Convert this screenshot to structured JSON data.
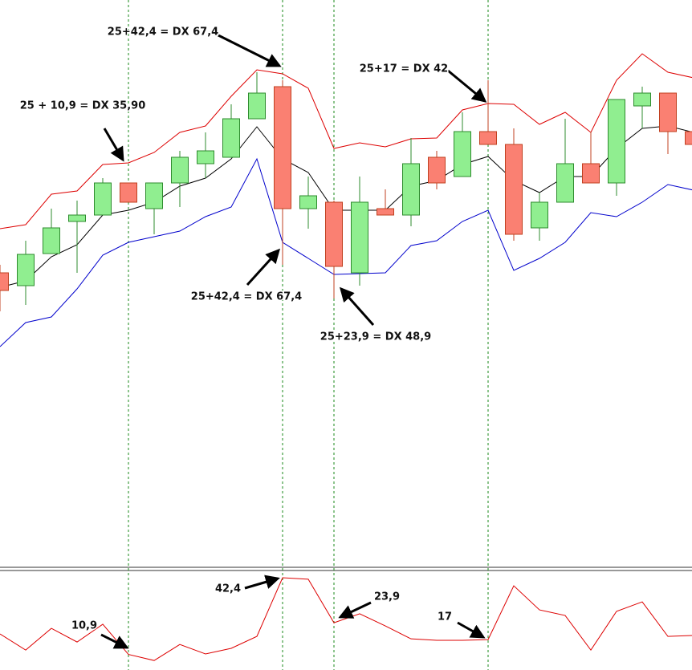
{
  "chart_data": [
    {
      "type": "candlestick",
      "open": [
        360,
        344,
        384,
        424,
        432,
        472,
        440,
        472,
        496,
        504,
        552,
        592,
        440,
        448,
        360,
        440,
        432,
        504,
        480,
        536,
        520,
        416,
        448,
        496,
        472,
        568,
        584,
        536
      ],
      "high": [
        370,
        400,
        440,
        450,
        478,
        472,
        472,
        512,
        535,
        570,
        610,
        600,
        480,
        450,
        480,
        464,
        528,
        512,
        560,
        600,
        540,
        460,
        552,
        536,
        576,
        592,
        584,
        544
      ],
      "low": [
        312,
        320,
        384,
        360,
        432,
        448,
        408,
        442,
        478,
        504,
        552,
        370,
        415,
        328,
        344,
        432,
        418,
        464,
        480,
        520,
        400,
        400,
        448,
        472,
        456,
        540,
        508,
        520
      ],
      "close": [
        338,
        383,
        416,
        432,
        472,
        448,
        472,
        504,
        512,
        552,
        584,
        440,
        456,
        368,
        448,
        432,
        496,
        472,
        536,
        520,
        408,
        448,
        496,
        472,
        576,
        584,
        536,
        520
      ],
      "up_color": "#90ee90",
      "down_color": "#fa8072",
      "bands": [
        {
          "color": "#dd0000",
          "values": [
            415,
            420,
            458,
            462,
            495,
            497,
            510,
            535,
            543,
            580,
            613,
            608,
            590,
            515,
            522,
            517,
            527,
            528,
            563,
            571,
            570,
            545,
            560,
            535,
            600,
            633,
            610,
            603
          ]
        },
        {
          "color": "#000000",
          "values": [
            342,
            350,
            380,
            395,
            432,
            438,
            448,
            468,
            478,
            502,
            542,
            502,
            485,
            438,
            438,
            438,
            468,
            475,
            495,
            505,
            475,
            460,
            480,
            480,
            515,
            540,
            543,
            535
          ]
        },
        {
          "color": "#0000cc",
          "values": [
            268,
            298,
            305,
            340,
            382,
            398,
            405,
            412,
            430,
            442,
            502,
            398,
            378,
            358,
            359,
            360,
            394,
            400,
            424,
            438,
            363,
            378,
            398,
            435,
            430,
            448,
            470,
            463
          ]
        }
      ],
      "ylim": [
        0,
        700
      ],
      "annotations": [
        "25+42,4 = DX 67,4",
        "25 + 10,9 = DX 35,90",
        "25+17 = DX 42",
        "25+42,4 = DX 67,4",
        "25+23,9 = DX 48,9"
      ]
    },
    {
      "type": "line",
      "color": "#dd0000",
      "values": [
        19.3,
        12.7,
        21.6,
        16.0,
        23.3,
        10.9,
        8.4,
        15.0,
        11.1,
        13.4,
        18.3,
        42.4,
        41.8,
        23.9,
        27.6,
        22.6,
        17.3,
        16.7,
        16.7,
        17,
        39.1,
        29.2,
        26.9,
        12.7,
        28.6,
        32.5,
        18.3,
        18.7
      ],
      "ylim": [
        4.5,
        45.7
      ],
      "annotations": [
        "10,9",
        "42,4",
        "23,9",
        "17"
      ]
    }
  ]
}
